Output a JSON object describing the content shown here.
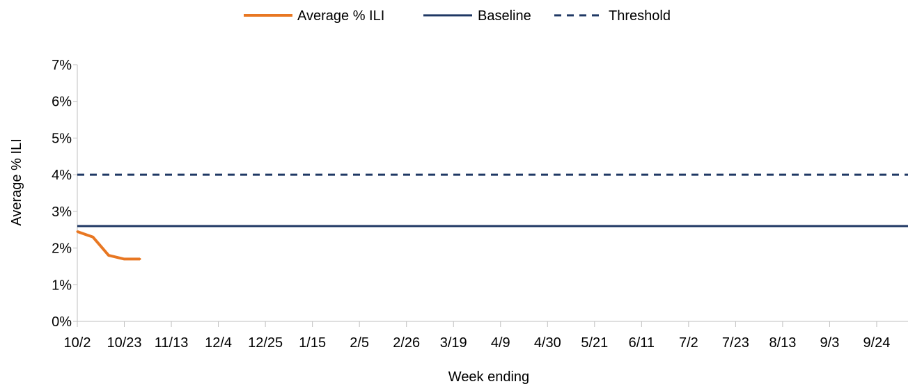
{
  "chart_data": {
    "type": "line",
    "xlabel": "Week ending",
    "ylabel": "Average % ILI",
    "ylim": [
      0,
      7
    ],
    "yticks": [
      "0%",
      "1%",
      "2%",
      "3%",
      "4%",
      "5%",
      "6%",
      "7%"
    ],
    "xticks": [
      "10/2",
      "10/23",
      "11/13",
      "12/4",
      "12/25",
      "1/15",
      "2/5",
      "2/26",
      "3/19",
      "4/9",
      "4/30",
      "5/21",
      "6/11",
      "7/2",
      "7/23",
      "8/13",
      "9/3",
      "9/24"
    ],
    "weeks": 53,
    "grid": false,
    "legend_position": "top",
    "series": [
      {
        "name": "Average % ILI",
        "color": "#E87722",
        "style": "solid",
        "x": [
          "10/2",
          "10/9",
          "10/16",
          "10/23",
          "10/30"
        ],
        "values": [
          2.45,
          2.3,
          1.8,
          1.7,
          1.7
        ]
      },
      {
        "name": "Baseline",
        "color": "#1F3864",
        "style": "solid",
        "constant": 2.6
      },
      {
        "name": "Threshold",
        "color": "#1F3864",
        "style": "dashed",
        "constant": 4.0
      }
    ]
  }
}
